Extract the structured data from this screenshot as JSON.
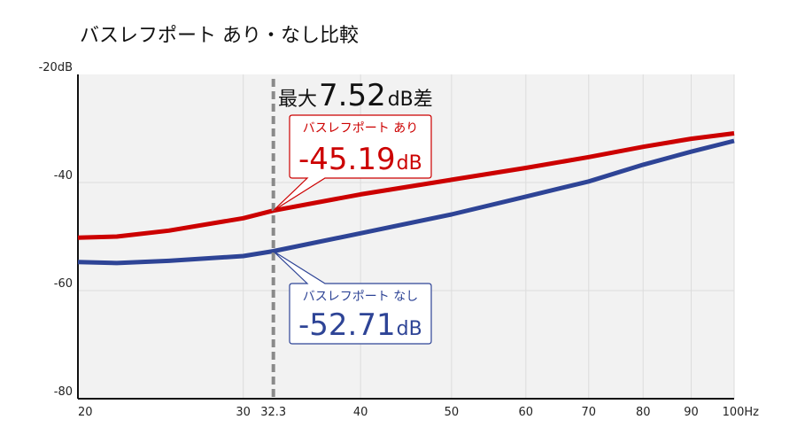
{
  "chart_data": {
    "type": "line",
    "title": "バスレフポート あり・なし比較",
    "x_scale": "log",
    "xlim": [
      20,
      100
    ],
    "ylim": [
      -80,
      -20
    ],
    "x_ticks": [
      20,
      30,
      40,
      50,
      60,
      70,
      80,
      90,
      100
    ],
    "x_tick_labels": [
      "20",
      "30",
      "40",
      "50",
      "60",
      "70",
      "80",
      "90",
      "100Hz"
    ],
    "y_ticks": [
      -20,
      -40,
      -60,
      -80
    ],
    "y_tick_labels": [
      "-20dB",
      "-40",
      "-60",
      "-80"
    ],
    "grid": true,
    "series": [
      {
        "name": "バスレフポート あり",
        "color": "#cc0000",
        "x": [
          20,
          22,
          25,
          30,
          32.3,
          40,
          50,
          60,
          70,
          80,
          90,
          100
        ],
        "y": [
          -50.2,
          -50.0,
          -48.9,
          -46.6,
          -45.19,
          -42.2,
          -39.5,
          -37.3,
          -35.3,
          -33.4,
          -31.9,
          -30.9
        ]
      },
      {
        "name": "バスレフポート なし",
        "color": "#2e4496",
        "x": [
          20,
          22,
          25,
          30,
          32.3,
          40,
          50,
          60,
          70,
          80,
          90,
          100
        ],
        "y": [
          -54.7,
          -54.9,
          -54.5,
          -53.6,
          -52.71,
          -49.4,
          -45.9,
          -42.6,
          -39.8,
          -36.7,
          -34.3,
          -32.3
        ]
      }
    ],
    "marker": {
      "x": 32.3,
      "label": "32.3"
    },
    "diff_annotation": {
      "prefix": "最大",
      "value": "7.52",
      "suffix": "dB差"
    },
    "callouts": [
      {
        "label": "バスレフポート あり",
        "value": "-45.19",
        "unit": "dB",
        "color": "#cc0000"
      },
      {
        "label": "バスレフポート なし",
        "value": "-52.71",
        "unit": "dB",
        "color": "#2e4496"
      }
    ]
  }
}
